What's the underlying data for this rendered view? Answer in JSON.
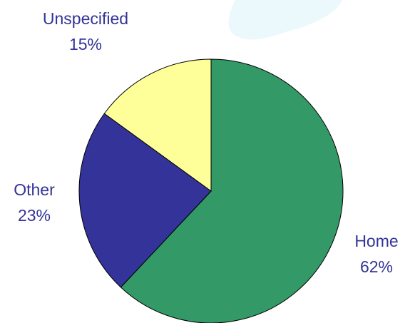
{
  "chart_data": {
    "type": "pie",
    "categories": [
      "Home",
      "Other",
      "Unspecified"
    ],
    "values": [
      62,
      23,
      15
    ],
    "value_labels": [
      "62%",
      "23%",
      "15%"
    ],
    "colors": [
      "#339966",
      "#333399",
      "#ffff99"
    ]
  }
}
